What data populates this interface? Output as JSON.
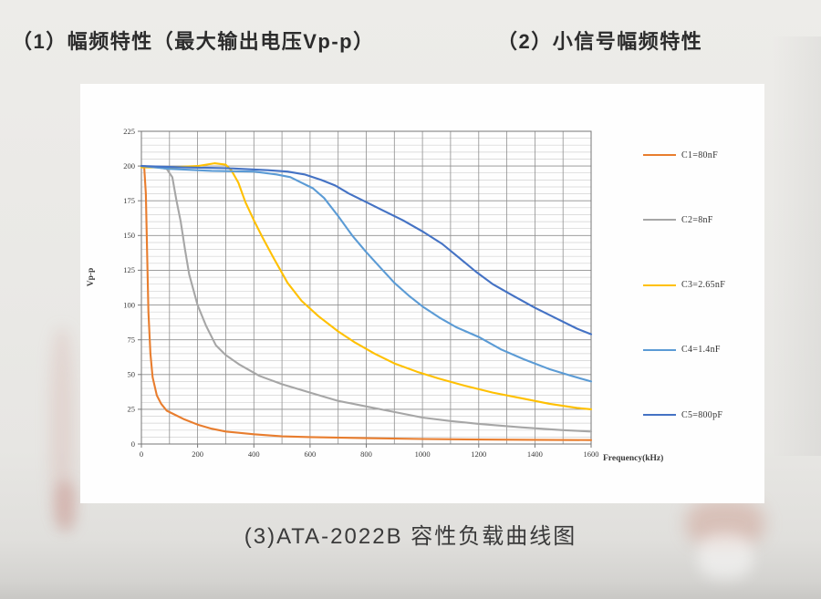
{
  "page": {
    "heading_left": "（1）幅频特性（最大输出电压Vp-p）",
    "heading_right": "（2）小信号幅频特性",
    "caption": "(3)ATA-2022B 容性负载曲线图"
  },
  "chart_data": {
    "type": "line",
    "title": "",
    "xlabel": "Frequency(kHz)",
    "ylabel": "Vp-p",
    "xlim": [
      0,
      1600
    ],
    "ylim": [
      0,
      225
    ],
    "x_ticks": [
      0,
      200,
      400,
      600,
      800,
      1000,
      1200,
      1400,
      1600
    ],
    "y_ticks": [
      0,
      25,
      50,
      75,
      100,
      125,
      150,
      175,
      200,
      225
    ],
    "x_minor_step": 100,
    "y_minor_step": 5,
    "grid": true,
    "legend_position": "right",
    "colors": {
      "frame": "#777777",
      "grid_major": "#8f8f8f",
      "grid_minor": "#d2d2d2",
      "text": "#3a3a3a"
    },
    "series": [
      {
        "name": "C1=80nF",
        "color": "#E87D2E",
        "points": [
          [
            0,
            200
          ],
          [
            10,
            199
          ],
          [
            16,
            180
          ],
          [
            20,
            140
          ],
          [
            25,
            95
          ],
          [
            32,
            65
          ],
          [
            40,
            48
          ],
          [
            55,
            35
          ],
          [
            70,
            29
          ],
          [
            90,
            24
          ],
          [
            110,
            22
          ],
          [
            150,
            18
          ],
          [
            200,
            14
          ],
          [
            250,
            11
          ],
          [
            300,
            9
          ],
          [
            400,
            7
          ],
          [
            500,
            5.5
          ],
          [
            600,
            5
          ],
          [
            800,
            4.2
          ],
          [
            1000,
            3.6
          ],
          [
            1200,
            3.2
          ],
          [
            1400,
            3
          ],
          [
            1600,
            2.8
          ]
        ]
      },
      {
        "name": "C2=8nF",
        "color": "#A6A6A6",
        "points": [
          [
            0,
            200
          ],
          [
            60,
            199
          ],
          [
            90,
            198
          ],
          [
            110,
            192
          ],
          [
            125,
            175
          ],
          [
            140,
            160
          ],
          [
            155,
            140
          ],
          [
            170,
            122
          ],
          [
            200,
            100
          ],
          [
            230,
            85
          ],
          [
            265,
            71
          ],
          [
            300,
            64
          ],
          [
            350,
            57
          ],
          [
            420,
            49
          ],
          [
            500,
            43
          ],
          [
            600,
            37
          ],
          [
            700,
            31
          ],
          [
            800,
            27
          ],
          [
            900,
            23
          ],
          [
            1000,
            19
          ],
          [
            1100,
            16.5
          ],
          [
            1200,
            14.5
          ],
          [
            1350,
            12
          ],
          [
            1500,
            10
          ],
          [
            1600,
            9
          ]
        ]
      },
      {
        "name": "C3=2.65nF",
        "color": "#FFC000",
        "points": [
          [
            0,
            199
          ],
          [
            100,
            199
          ],
          [
            200,
            200
          ],
          [
            260,
            202
          ],
          [
            300,
            201
          ],
          [
            320,
            197
          ],
          [
            345,
            188
          ],
          [
            370,
            174
          ],
          [
            400,
            161
          ],
          [
            430,
            149
          ],
          [
            470,
            134
          ],
          [
            520,
            116
          ],
          [
            570,
            103
          ],
          [
            630,
            92
          ],
          [
            700,
            81
          ],
          [
            760,
            73
          ],
          [
            830,
            65
          ],
          [
            900,
            58
          ],
          [
            980,
            52
          ],
          [
            1060,
            47
          ],
          [
            1150,
            42
          ],
          [
            1250,
            37
          ],
          [
            1350,
            33
          ],
          [
            1450,
            29
          ],
          [
            1550,
            26
          ],
          [
            1600,
            25
          ]
        ]
      },
      {
        "name": "C4=1.4nF",
        "color": "#5B9BD5",
        "points": [
          [
            0,
            200
          ],
          [
            100,
            198
          ],
          [
            250,
            196.5
          ],
          [
            400,
            196
          ],
          [
            480,
            194
          ],
          [
            530,
            192
          ],
          [
            570,
            188
          ],
          [
            610,
            184
          ],
          [
            650,
            177
          ],
          [
            700,
            164
          ],
          [
            750,
            150
          ],
          [
            800,
            138
          ],
          [
            850,
            127
          ],
          [
            900,
            116
          ],
          [
            950,
            107
          ],
          [
            1000,
            99
          ],
          [
            1060,
            91
          ],
          [
            1120,
            84
          ],
          [
            1200,
            77
          ],
          [
            1280,
            68
          ],
          [
            1360,
            61
          ],
          [
            1450,
            54
          ],
          [
            1530,
            49
          ],
          [
            1600,
            45
          ]
        ]
      },
      {
        "name": "C5=800pF",
        "color": "#4472C4",
        "points": [
          [
            0,
            200
          ],
          [
            150,
            199
          ],
          [
            300,
            198.5
          ],
          [
            450,
            197
          ],
          [
            520,
            196
          ],
          [
            580,
            194
          ],
          [
            640,
            190
          ],
          [
            690,
            186
          ],
          [
            740,
            180
          ],
          [
            800,
            174
          ],
          [
            860,
            168
          ],
          [
            930,
            161
          ],
          [
            1000,
            153
          ],
          [
            1070,
            144
          ],
          [
            1130,
            134
          ],
          [
            1190,
            124
          ],
          [
            1250,
            115
          ],
          [
            1320,
            107
          ],
          [
            1400,
            98
          ],
          [
            1480,
            90
          ],
          [
            1550,
            83
          ],
          [
            1600,
            79
          ]
        ]
      }
    ]
  }
}
